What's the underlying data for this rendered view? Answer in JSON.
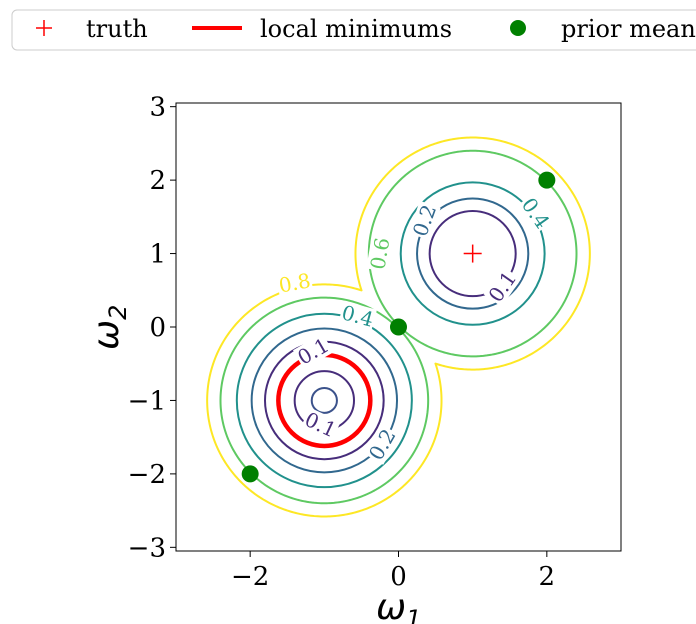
{
  "chart_data": {
    "type": "contour",
    "title": "",
    "xlabel": "ω",
    "xlabel_sub": "1",
    "ylabel": "ω",
    "ylabel_sub": "2",
    "xlim": [
      -3,
      3
    ],
    "ylim": [
      -3.05,
      3.05
    ],
    "xticks": [
      -2,
      0,
      2
    ],
    "xtick_labels": [
      "−2",
      "0",
      "2"
    ],
    "yticks": [
      -3,
      -2,
      -1,
      0,
      1,
      2,
      3
    ],
    "ytick_labels": [
      "−3",
      "−2",
      "−1",
      "0",
      "1",
      "2",
      "3"
    ],
    "grid": false,
    "legend": {
      "position": "top",
      "entries": [
        {
          "label": "truth",
          "marker": "plus",
          "color": "#ff0000"
        },
        {
          "label": "local minimums",
          "marker": "line",
          "color": "#ff0000"
        },
        {
          "label": "prior mean",
          "marker": "circle",
          "color": "#008000"
        }
      ]
    },
    "levels": [
      0.05,
      0.1,
      0.2,
      0.4,
      0.6,
      0.8
    ],
    "level_colors": {
      "0.05": "#3b528b",
      "0.1": "#472d7b",
      "0.2": "#31688e",
      "0.4": "#21918c",
      "0.6": "#5ec962",
      "0.8": "#fde725"
    },
    "contours": [
      {
        "level": 0.05,
        "center": [
          -1,
          -1
        ],
        "radius": 0.17
      },
      {
        "level": 0.1,
        "center": [
          -1,
          -1
        ],
        "radius": 0.4,
        "partial": true
      },
      {
        "level": 0.1,
        "center": [
          -1,
          -1
        ],
        "radius": 0.8
      },
      {
        "level": 0.2,
        "center": [
          -1,
          -1
        ],
        "radius": 0.98
      },
      {
        "level": 0.4,
        "center": [
          -1,
          -1
        ],
        "radius": 1.18
      },
      {
        "level": 0.1,
        "center": [
          1,
          1
        ],
        "radius": 0.58
      },
      {
        "level": 0.2,
        "center": [
          1,
          1
        ],
        "radius": 0.75
      },
      {
        "level": 0.4,
        "center": [
          1,
          1
        ],
        "radius": 0.97
      }
    ],
    "joined_contours": [
      {
        "level": 0.6,
        "radius": 1.4,
        "neck": 0.08
      },
      {
        "level": 0.8,
        "radius": 1.58,
        "neck": 0.22
      }
    ],
    "contour_labels": [
      {
        "text": "0.1",
        "x": -1.15,
        "y": -0.33,
        "level": 0.1,
        "rotation": -30
      },
      {
        "text": "0.1",
        "x": -1.05,
        "y": -1.33,
        "level": 0.1,
        "rotation": 25
      },
      {
        "text": "0.2",
        "x": -0.22,
        "y": -1.6,
        "level": 0.2,
        "rotation": -60
      },
      {
        "text": "0.4",
        "x": -0.55,
        "y": 0.15,
        "level": 0.4,
        "rotation": 15
      },
      {
        "text": "0.2",
        "x": 0.35,
        "y": 1.45,
        "level": 0.2,
        "rotation": -70
      },
      {
        "text": "0.1",
        "x": 1.4,
        "y": 0.55,
        "level": 0.1,
        "rotation": -55
      },
      {
        "text": "0.4",
        "x": 1.85,
        "y": 1.55,
        "level": 0.4,
        "rotation": 55
      },
      {
        "text": "0.6",
        "x": -0.25,
        "y": 1.0,
        "level": 0.6,
        "rotation": -80
      },
      {
        "text": "0.8",
        "x": -1.4,
        "y": 0.6,
        "level": 0.8,
        "rotation": -10
      }
    ],
    "local_minimum": {
      "center": [
        -1,
        -1
      ],
      "radius": 0.62,
      "color": "#ff0000"
    },
    "truth": {
      "x": 1,
      "y": 1,
      "color": "#ff0000"
    },
    "prior_means": [
      {
        "x": -2,
        "y": -2
      },
      {
        "x": 0,
        "y": 0
      },
      {
        "x": 2,
        "y": 2
      }
    ],
    "prior_mean_color": "#008000"
  }
}
